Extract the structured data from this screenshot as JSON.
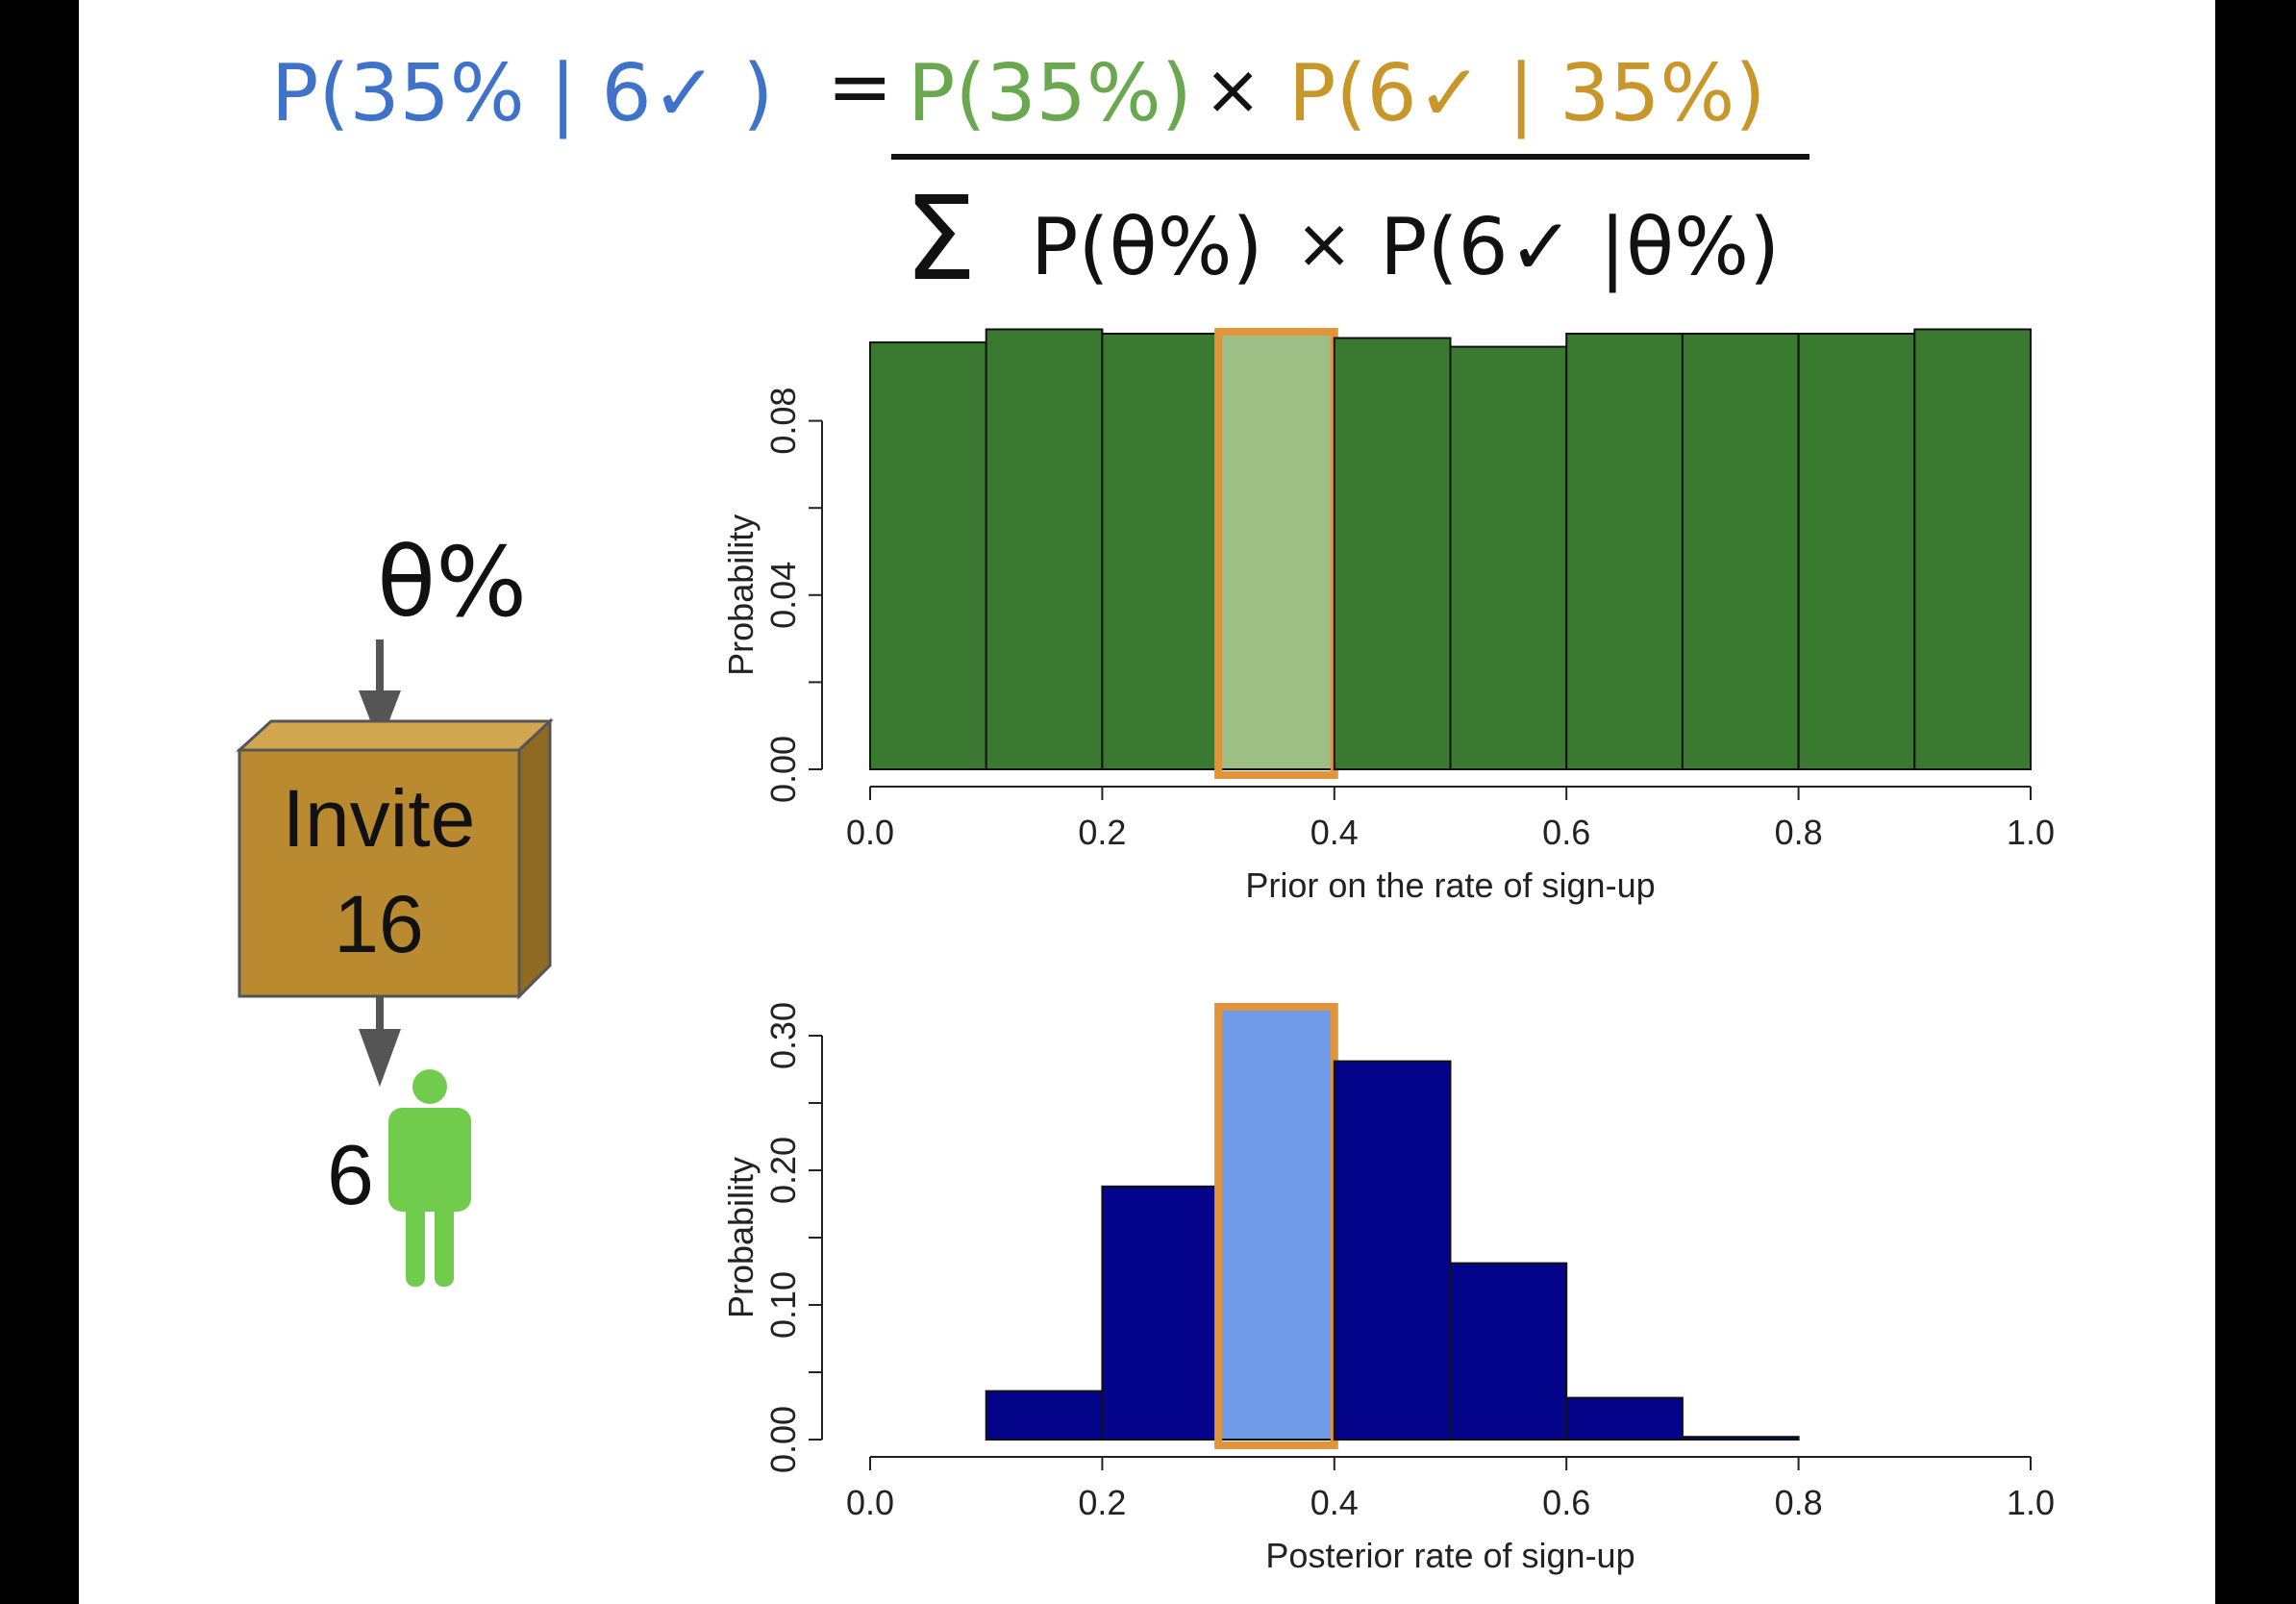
{
  "colors": {
    "blue_text": "#3f72c9",
    "green_text": "#6aa84f",
    "gold_text": "#c9962a",
    "black_text": "#111111",
    "prior_bar": "#3a7a30",
    "prior_highlight": "#9dbf86",
    "posterior_bar": "#04048a",
    "posterior_highlight": "#6e9ae8",
    "highlight_outline": "#e0953a",
    "box_front": "#b98a2f",
    "box_side": "#8f6a22",
    "box_top": "#d1a64f",
    "person": "#71cc4d",
    "arrow": "#555555"
  },
  "formula": {
    "lhs": "P(35% | 6✓ )",
    "equals": "=",
    "numerator_prior": "P(35%)",
    "times": "×",
    "numerator_likelihood": "P(6✓ | 35%)",
    "sigma": "Σ",
    "denominator_prior": "P(θ%)",
    "denominator_times": "×",
    "denominator_likelihood": "P(6✓ |θ%)"
  },
  "diagram": {
    "theta_label": "θ%",
    "box_line1": "Invite",
    "box_line2": "16",
    "count_label": "6",
    "person_icon": "person-icon"
  },
  "chart_data": [
    {
      "type": "bar",
      "xlabel": "Prior on the rate of sign-up",
      "ylabel": "Probability",
      "xlim": [
        0.0,
        1.0
      ],
      "ylim": [
        0.0,
        0.1
      ],
      "xticks": [
        "0.0",
        "0.2",
        "0.4",
        "0.6",
        "0.8",
        "1.0"
      ],
      "yticks": [
        "0.00",
        "0.04",
        "0.08"
      ],
      "bin_edges": [
        0.0,
        0.1,
        0.2,
        0.3,
        0.4,
        0.5,
        0.6,
        0.7,
        0.8,
        0.9,
        1.0
      ],
      "values": [
        0.098,
        0.101,
        0.1,
        0.1,
        0.099,
        0.097,
        0.1,
        0.1,
        0.1,
        0.101
      ],
      "highlight_bin": 3
    },
    {
      "type": "bar",
      "xlabel": "Posterior rate of sign-up",
      "ylabel": "Probability",
      "xlim": [
        0.0,
        1.0
      ],
      "ylim": [
        0.0,
        0.3
      ],
      "xticks": [
        "0.0",
        "0.2",
        "0.4",
        "0.6",
        "0.8",
        "1.0"
      ],
      "yticks": [
        "0.00",
        "0.10",
        "0.20",
        "0.30"
      ],
      "bin_edges": [
        0.0,
        0.1,
        0.2,
        0.3,
        0.4,
        0.5,
        0.6,
        0.7,
        0.8,
        0.9,
        1.0
      ],
      "values": [
        0.0,
        0.036,
        0.188,
        0.32,
        0.281,
        0.131,
        0.031,
        0.002,
        0.0,
        0.0
      ],
      "highlight_bin": 3
    }
  ]
}
